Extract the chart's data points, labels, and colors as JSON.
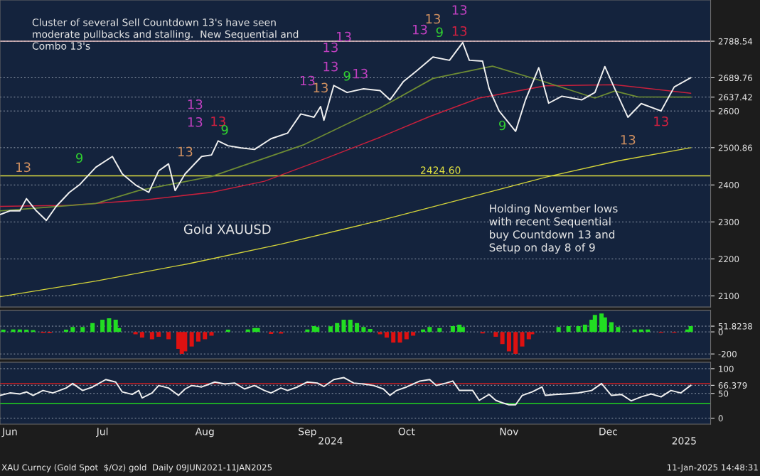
{
  "chart_data": [
    {
      "type": "line",
      "series": [
        {
          "color": "#f0f0f0",
          "x": [
            "2024-06-15",
            "2024-06-18",
            "2024-06-21",
            "2024-06-23",
            "2024-06-26",
            "2024-06-29",
            "2024-07-02",
            "2024-07-06",
            "2024-07-09",
            "2024-07-14",
            "2024-07-19",
            "2024-07-22",
            "2024-07-26",
            "2024-07-30",
            "2024-08-02",
            "2024-08-05",
            "2024-08-07",
            "2024-08-10",
            "2024-08-15",
            "2024-08-18",
            "2024-08-20",
            "2024-08-23",
            "2024-08-27",
            "2024-08-31",
            "2024-09-05",
            "2024-09-10",
            "2024-09-14",
            "2024-09-18",
            "2024-09-20",
            "2024-09-21",
            "2024-09-24",
            "2024-09-28",
            "2024-10-03",
            "2024-10-08",
            "2024-10-11",
            "2024-10-15",
            "2024-10-19",
            "2024-10-24",
            "2024-10-29",
            "2024-11-02",
            "2024-11-04",
            "2024-11-08",
            "2024-11-10",
            "2024-11-13",
            "2024-11-18",
            "2024-11-21",
            "2024-11-25",
            "2024-11-28",
            "2024-12-02",
            "2024-12-08",
            "2024-12-12",
            "2024-12-15",
            "2024-12-18",
            "2024-12-22",
            "2024-12-26",
            "2025-01-01",
            "2025-01-05",
            "2025-01-08",
            "2025-01-10"
          ],
          "values": [
            2320,
            2330,
            2330,
            2363,
            2330,
            2304,
            2342,
            2380,
            2400,
            2448,
            2477,
            2430,
            2400,
            2380,
            2438,
            2457,
            2385,
            2430,
            2477,
            2481,
            2519,
            2506,
            2500,
            2496,
            2525,
            2540,
            2592,
            2583,
            2612,
            2575,
            2669,
            2650,
            2660,
            2655,
            2630,
            2679,
            2708,
            2746,
            2737,
            2785,
            2737,
            2735,
            2660,
            2600,
            2545,
            2630,
            2717,
            2621,
            2640,
            2630,
            2650,
            2720,
            2660,
            2583,
            2620,
            2600,
            2665,
            2680,
            2689.76
          ]
        },
        {
          "color": "#6e8c34",
          "x": [
            "2024-06-15",
            "2024-07-14",
            "2024-07-27",
            "2024-08-18",
            "2024-09-15",
            "2024-10-08",
            "2024-10-24",
            "2024-11-11",
            "2024-11-26",
            "2024-12-12",
            "2024-12-18",
            "2024-12-25",
            "2025-01-10"
          ],
          "values": [
            2330,
            2350,
            2385,
            2423,
            2509,
            2608,
            2688,
            2721,
            2681,
            2635,
            2654,
            2638,
            2637.42
          ]
        },
        {
          "color": "#c8203c",
          "x": [
            "2024-06-15",
            "2024-07-06",
            "2024-07-29",
            "2024-08-18",
            "2024-09-03",
            "2024-09-21",
            "2024-10-08",
            "2024-10-23",
            "2024-11-07",
            "2024-11-27",
            "2024-12-18",
            "2025-01-10"
          ],
          "values": [
            2342,
            2345,
            2360,
            2380,
            2410,
            2470,
            2529,
            2585,
            2635,
            2668,
            2671,
            2648
          ]
        },
        {
          "color": "#d4d43a",
          "x": [
            "2024-06-15",
            "2024-07-14",
            "2024-08-11",
            "2024-09-08",
            "2024-10-08",
            "2024-11-02",
            "2024-11-28",
            "2024-12-19",
            "2025-01-10"
          ],
          "values": [
            2098,
            2140,
            2187,
            2240,
            2304,
            2362,
            2423,
            2465,
            2500.86
          ]
        }
      ],
      "xlim": [
        "2024-06-15",
        "2025-01-16"
      ],
      "ylim": [
        2070,
        2900
      ],
      "yticks": [
        2100,
        2200,
        2300,
        2400,
        {
          "value": 2500.86,
          "label": "2500.86"
        },
        2600,
        {
          "value": 2637.42,
          "label": "2637.42"
        },
        {
          "value": 2689.76,
          "label": "2689.76"
        },
        {
          "value": 2788.54,
          "label": "2788.54"
        }
      ],
      "tick_labels": "y",
      "grid": "y",
      "ref_lines": [
        {
          "axis": "y",
          "value": 2788.54,
          "color": "#f0c8c8"
        },
        {
          "axis": "y",
          "value": 2424.6,
          "label": "2424.60",
          "color": "#e0e040"
        }
      ],
      "annotations": [
        "Cluster of several Sell Countdown 13's have seen\nmoderate pullbacks and stalling.  New Sequential and\nCombo 13's",
        "Holding November lows\nwith recent Sequential\nbuy Countdown 13 and\nSetup on day 8 of 9",
        "Gold XAUUSD",
        "XAU Curncy (Gold Spot  $/Oz) gold  Daily 09JUN2021-11JAN2025",
        "11-Jan-2025 14:48:31",
        "13",
        "9",
        "13",
        "13",
        "13",
        "13",
        "9",
        "13",
        "13",
        "13",
        "13",
        "13",
        "9",
        "13",
        "13",
        "13",
        "9",
        "13",
        "13",
        "9",
        "13",
        "13"
      ]
    },
    {
      "type": "bar",
      "x": [
        "2024-06-16",
        "2024-06-19",
        "2024-06-21",
        "2024-06-23",
        "2024-06-25",
        "2024-06-28",
        "2024-06-30",
        "2024-07-05",
        "2024-07-07",
        "2024-07-10",
        "2024-07-13",
        "2024-07-16",
        "2024-07-18",
        "2024-07-20",
        "2024-07-21",
        "2024-07-26",
        "2024-07-28",
        "2024-07-31",
        "2024-08-02",
        "2024-08-05",
        "2024-08-08",
        "2024-08-09",
        "2024-08-10",
        "2024-08-12",
        "2024-08-14",
        "2024-08-16",
        "2024-08-18",
        "2024-08-23",
        "2024-08-29",
        "2024-08-31",
        "2024-09-01",
        "2024-09-05",
        "2024-09-08",
        "2024-09-16",
        "2024-09-18",
        "2024-09-19",
        "2024-09-23",
        "2024-09-25",
        "2024-09-27",
        "2024-09-29",
        "2024-10-01",
        "2024-10-03",
        "2024-10-05",
        "2024-10-08",
        "2024-10-10",
        "2024-10-12",
        "2024-10-14",
        "2024-10-16",
        "2024-10-18",
        "2024-10-21",
        "2024-10-23",
        "2024-10-26",
        "2024-10-30",
        "2024-11-01",
        "2024-11-02",
        "2024-11-08",
        "2024-11-12",
        "2024-11-14",
        "2024-11-16",
        "2024-11-18",
        "2024-11-20",
        "2024-11-22",
        "2024-11-23",
        "2024-12-01",
        "2024-12-04",
        "2024-12-07",
        "2024-12-09",
        "2024-12-11",
        "2024-12-12",
        "2024-12-14",
        "2024-12-15",
        "2024-12-17",
        "2024-12-19",
        "2024-12-24",
        "2024-12-26",
        "2024-12-28",
        "2025-01-01",
        "2025-01-05",
        "2025-01-09",
        "2025-01-10"
      ],
      "values": [
        20,
        22,
        22,
        20,
        15,
        -10,
        -12,
        20,
        44,
        44,
        79,
        110,
        123,
        110,
        35,
        -22,
        -53,
        -66,
        -44,
        -66,
        -154,
        -198,
        -176,
        -132,
        -88,
        -66,
        -35,
        20,
        22,
        35,
        35,
        -18,
        -15,
        22,
        53,
        44,
        50,
        79,
        110,
        110,
        79,
        44,
        26,
        -22,
        -53,
        -97,
        -97,
        -66,
        -35,
        22,
        44,
        35,
        53,
        66,
        44,
        -13,
        -44,
        -110,
        -176,
        -198,
        -132,
        -66,
        -22,
        44,
        53,
        53,
        66,
        110,
        154,
        167,
        132,
        88,
        44,
        22,
        22,
        22,
        -9,
        -9,
        22,
        51.8238
      ],
      "colors": [
        "#22dd22",
        "#22dd22",
        "#22dd22",
        "#22dd22",
        "#22dd22",
        "#dd1111",
        "#dd1111",
        "#22dd22",
        "#22dd22",
        "#22dd22",
        "#22dd22",
        "#22dd22",
        "#22dd22",
        "#22dd22",
        "#22dd22",
        "#dd1111",
        "#dd1111",
        "#dd1111",
        "#dd1111",
        "#dd1111",
        "#dd1111",
        "#dd1111",
        "#dd1111",
        "#dd1111",
        "#dd1111",
        "#dd1111",
        "#dd1111",
        "#22dd22",
        "#22dd22",
        "#22dd22",
        "#22dd22",
        "#dd1111",
        "#dd1111",
        "#22dd22",
        "#22dd22",
        "#22dd22",
        "#22dd22",
        "#22dd22",
        "#22dd22",
        "#22dd22",
        "#22dd22",
        "#22dd22",
        "#22dd22",
        "#dd1111",
        "#dd1111",
        "#dd1111",
        "#dd1111",
        "#dd1111",
        "#dd1111",
        "#22dd22",
        "#22dd22",
        "#22dd22",
        "#22dd22",
        "#22dd22",
        "#22dd22",
        "#dd1111",
        "#dd1111",
        "#dd1111",
        "#dd1111",
        "#dd1111",
        "#dd1111",
        "#dd1111",
        "#dd1111",
        "#22dd22",
        "#22dd22",
        "#22dd22",
        "#22dd22",
        "#22dd22",
        "#22dd22",
        "#22dd22",
        "#22dd22",
        "#22dd22",
        "#22dd22",
        "#22dd22",
        "#22dd22",
        "#22dd22",
        "#dd1111",
        "#dd1111",
        "#22dd22",
        "#22dd22"
      ],
      "xlim": [
        "2024-06-15",
        "2025-01-16"
      ],
      "ylim": [
        -245,
        195
      ],
      "yticks": [
        -200,
        0,
        {
          "value": 51.8238,
          "label": "51.8238"
        }
      ],
      "tick_labels": "y",
      "grid": "y"
    },
    {
      "type": "line",
      "series": [
        {
          "color": "#f0f0f0",
          "x": [
            "2024-06-15",
            "2024-06-18",
            "2024-06-21",
            "2024-06-23",
            "2024-06-25",
            "2024-06-28",
            "2024-07-01",
            "2024-07-05",
            "2024-07-07",
            "2024-07-10",
            "2024-07-13",
            "2024-07-17",
            "2024-07-20",
            "2024-07-22",
            "2024-07-25",
            "2024-07-27",
            "2024-07-28",
            "2024-07-31",
            "2024-08-02",
            "2024-08-05",
            "2024-08-08",
            "2024-08-10",
            "2024-08-12",
            "2024-08-15",
            "2024-08-19",
            "2024-08-22",
            "2024-08-25",
            "2024-08-28",
            "2024-08-31",
            "2024-09-03",
            "2024-09-05",
            "2024-09-08",
            "2024-09-10",
            "2024-09-13",
            "2024-09-16",
            "2024-09-19",
            "2024-09-21",
            "2024-09-24",
            "2024-09-27",
            "2024-09-30",
            "2024-10-03",
            "2024-10-06",
            "2024-10-09",
            "2024-10-11",
            "2024-10-13",
            "2024-10-16",
            "2024-10-20",
            "2024-10-23",
            "2024-10-25",
            "2024-10-28",
            "2024-10-30",
            "2024-11-01",
            "2024-11-05",
            "2024-11-07",
            "2024-11-10",
            "2024-11-12",
            "2024-11-14",
            "2024-11-16",
            "2024-11-18",
            "2024-11-20",
            "2024-11-23",
            "2024-11-26",
            "2024-11-27",
            "2024-11-30",
            "2024-12-03",
            "2024-12-07",
            "2024-12-11",
            "2024-12-14",
            "2024-12-17",
            "2024-12-20",
            "2024-12-23",
            "2024-12-26",
            "2024-12-29",
            "2025-01-01",
            "2025-01-04",
            "2025-01-07",
            "2025-01-10"
          ],
          "values": [
            46,
            51,
            49,
            53,
            46,
            56,
            51,
            61,
            70,
            56,
            63,
            78,
            73,
            53,
            48,
            56,
            41,
            51,
            66,
            61,
            46,
            59,
            66,
            63,
            73,
            69,
            71,
            59,
            66,
            56,
            51,
            61,
            56,
            63,
            73,
            71,
            64,
            78,
            82,
            71,
            69,
            66,
            59,
            46,
            56,
            63,
            75,
            78,
            66,
            71,
            75,
            56,
            56,
            36,
            48,
            36,
            31,
            27,
            27,
            46,
            53,
            63,
            46,
            48,
            49,
            51,
            56,
            70,
            46,
            48,
            35,
            43,
            49,
            43,
            56,
            51,
            66.379
          ]
        }
      ],
      "xlim": [
        "2024-06-15",
        "2025-01-16"
      ],
      "ylim": [
        -12,
        113
      ],
      "yticks": [
        0,
        50,
        {
          "value": 66.379,
          "label": "66.379"
        },
        100
      ],
      "xticks": [
        {
          "value": "2024-06-18",
          "label": "Jun"
        },
        {
          "value": "2024-07-16",
          "label": "Jul"
        },
        {
          "value": "2024-08-16",
          "label": "Aug"
        },
        {
          "value": "2024-09-16",
          "label": "Sep"
        },
        {
          "value": "2024-10-16",
          "label": "Oct"
        },
        {
          "value": "2024-11-16",
          "label": "Nov"
        },
        {
          "value": "2024-12-16",
          "label": "Dec"
        }
      ],
      "x2lim": [
        "2024-06-15",
        "2025-01-16"
      ],
      "x2ticks": [
        {
          "value": "2024-09-23",
          "label": "2024"
        },
        {
          "value": "2025-01-08",
          "label": "2025"
        }
      ],
      "grid": "y",
      "ref_lines": [
        {
          "axis": "y",
          "value": 70,
          "color": "#e02020"
        },
        {
          "axis": "y",
          "value": 30,
          "color": "#20d020"
        }
      ]
    }
  ]
}
